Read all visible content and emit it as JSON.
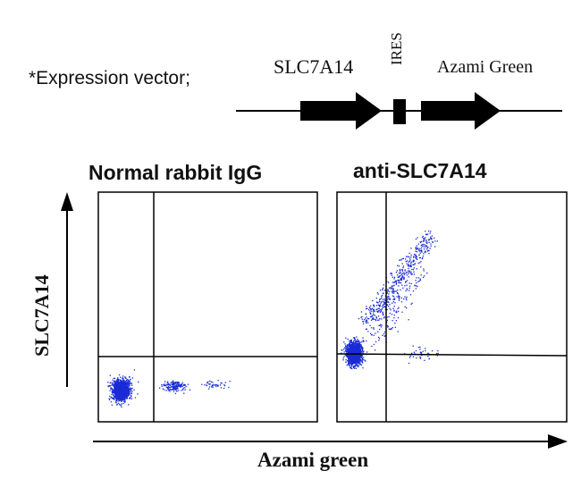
{
  "vector": {
    "caption": "*Expression vector;",
    "gene_label": "SLC7A14",
    "ires_label": "IRES",
    "reporter_label": "Azami Green"
  },
  "plots": {
    "left_title": "Normal rabbit IgG",
    "right_title": "anti-SLC7A14",
    "y_axis_label": "SLC7A14",
    "x_axis_label": "Azami green"
  },
  "colors": {
    "dots": "#1a2bd6",
    "lines": "#000000"
  }
}
